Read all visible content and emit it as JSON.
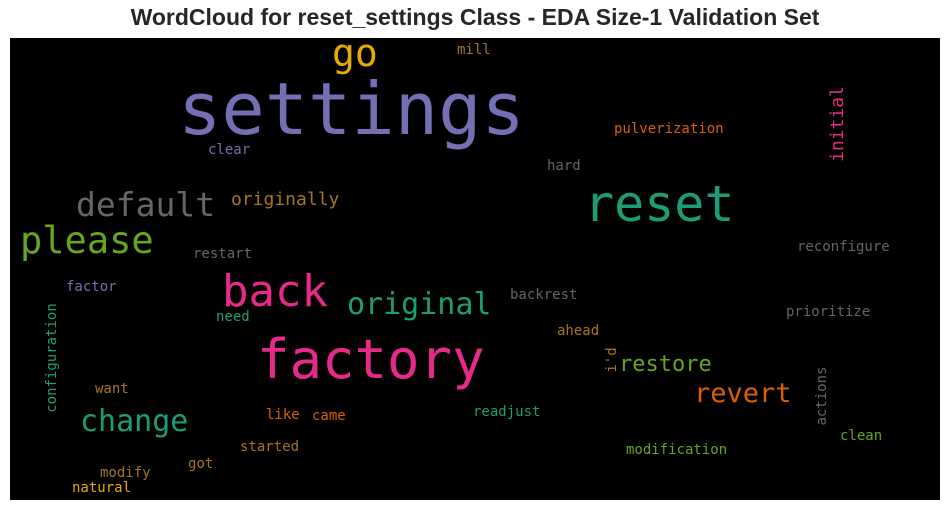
{
  "chart_data": {
    "type": "wordcloud",
    "title": "WordCloud for reset_settings Class - EDA Size-1 Validation Set",
    "background": "#000000",
    "words": [
      {
        "text": "settings",
        "color": "#7570b3",
        "orientation": "horizontal"
      },
      {
        "text": "reset",
        "color": "#1b9e77",
        "orientation": "horizontal"
      },
      {
        "text": "factory",
        "color": "#e7298a",
        "orientation": "horizontal"
      },
      {
        "text": "back",
        "color": "#e7298a",
        "orientation": "horizontal"
      },
      {
        "text": "go",
        "color": "#e6ab02",
        "orientation": "horizontal"
      },
      {
        "text": "please",
        "color": "#66a61e",
        "orientation": "horizontal"
      },
      {
        "text": "default",
        "color": "#666666",
        "orientation": "horizontal"
      },
      {
        "text": "original",
        "color": "#1b9e77",
        "orientation": "horizontal"
      },
      {
        "text": "change",
        "color": "#1b9e77",
        "orientation": "horizontal"
      },
      {
        "text": "revert",
        "color": "#d95f02",
        "orientation": "horizontal"
      },
      {
        "text": "restore",
        "color": "#66a61e",
        "orientation": "horizontal"
      },
      {
        "text": "initial",
        "color": "#e7298a",
        "orientation": "vertical"
      },
      {
        "text": "originally",
        "color": "#a6761d",
        "orientation": "horizontal"
      },
      {
        "text": "pulverization",
        "color": "#d95f02",
        "orientation": "horizontal"
      },
      {
        "text": "mill",
        "color": "#a6761d",
        "orientation": "horizontal"
      },
      {
        "text": "clear",
        "color": "#7570b3",
        "orientation": "horizontal"
      },
      {
        "text": "hard",
        "color": "#666666",
        "orientation": "horizontal"
      },
      {
        "text": "restart",
        "color": "#666666",
        "orientation": "horizontal"
      },
      {
        "text": "reconfigure",
        "color": "#666666",
        "orientation": "horizontal"
      },
      {
        "text": "factor",
        "color": "#7570b3",
        "orientation": "horizontal"
      },
      {
        "text": "backrest",
        "color": "#666666",
        "orientation": "horizontal"
      },
      {
        "text": "need",
        "color": "#1b9e77",
        "orientation": "horizontal"
      },
      {
        "text": "prioritize",
        "color": "#666666",
        "orientation": "horizontal"
      },
      {
        "text": "ahead",
        "color": "#a6761d",
        "orientation": "horizontal"
      },
      {
        "text": "i'd",
        "color": "#a6761d",
        "orientation": "vertical"
      },
      {
        "text": "configuration",
        "color": "#1b9e77",
        "orientation": "vertical"
      },
      {
        "text": "want",
        "color": "#a6761d",
        "orientation": "horizontal"
      },
      {
        "text": "like",
        "color": "#d95f02",
        "orientation": "horizontal"
      },
      {
        "text": "came",
        "color": "#d95f02",
        "orientation": "horizontal"
      },
      {
        "text": "readjust",
        "color": "#1b9e77",
        "orientation": "horizontal"
      },
      {
        "text": "actions",
        "color": "#666666",
        "orientation": "vertical"
      },
      {
        "text": "clean",
        "color": "#66a61e",
        "orientation": "horizontal"
      },
      {
        "text": "started",
        "color": "#a6761d",
        "orientation": "horizontal"
      },
      {
        "text": "modification",
        "color": "#66a61e",
        "orientation": "horizontal"
      },
      {
        "text": "got",
        "color": "#a6761d",
        "orientation": "horizontal"
      },
      {
        "text": "modify",
        "color": "#a6761d",
        "orientation": "horizontal"
      },
      {
        "text": "natural",
        "color": "#e6ab02",
        "orientation": "horizontal"
      }
    ]
  }
}
